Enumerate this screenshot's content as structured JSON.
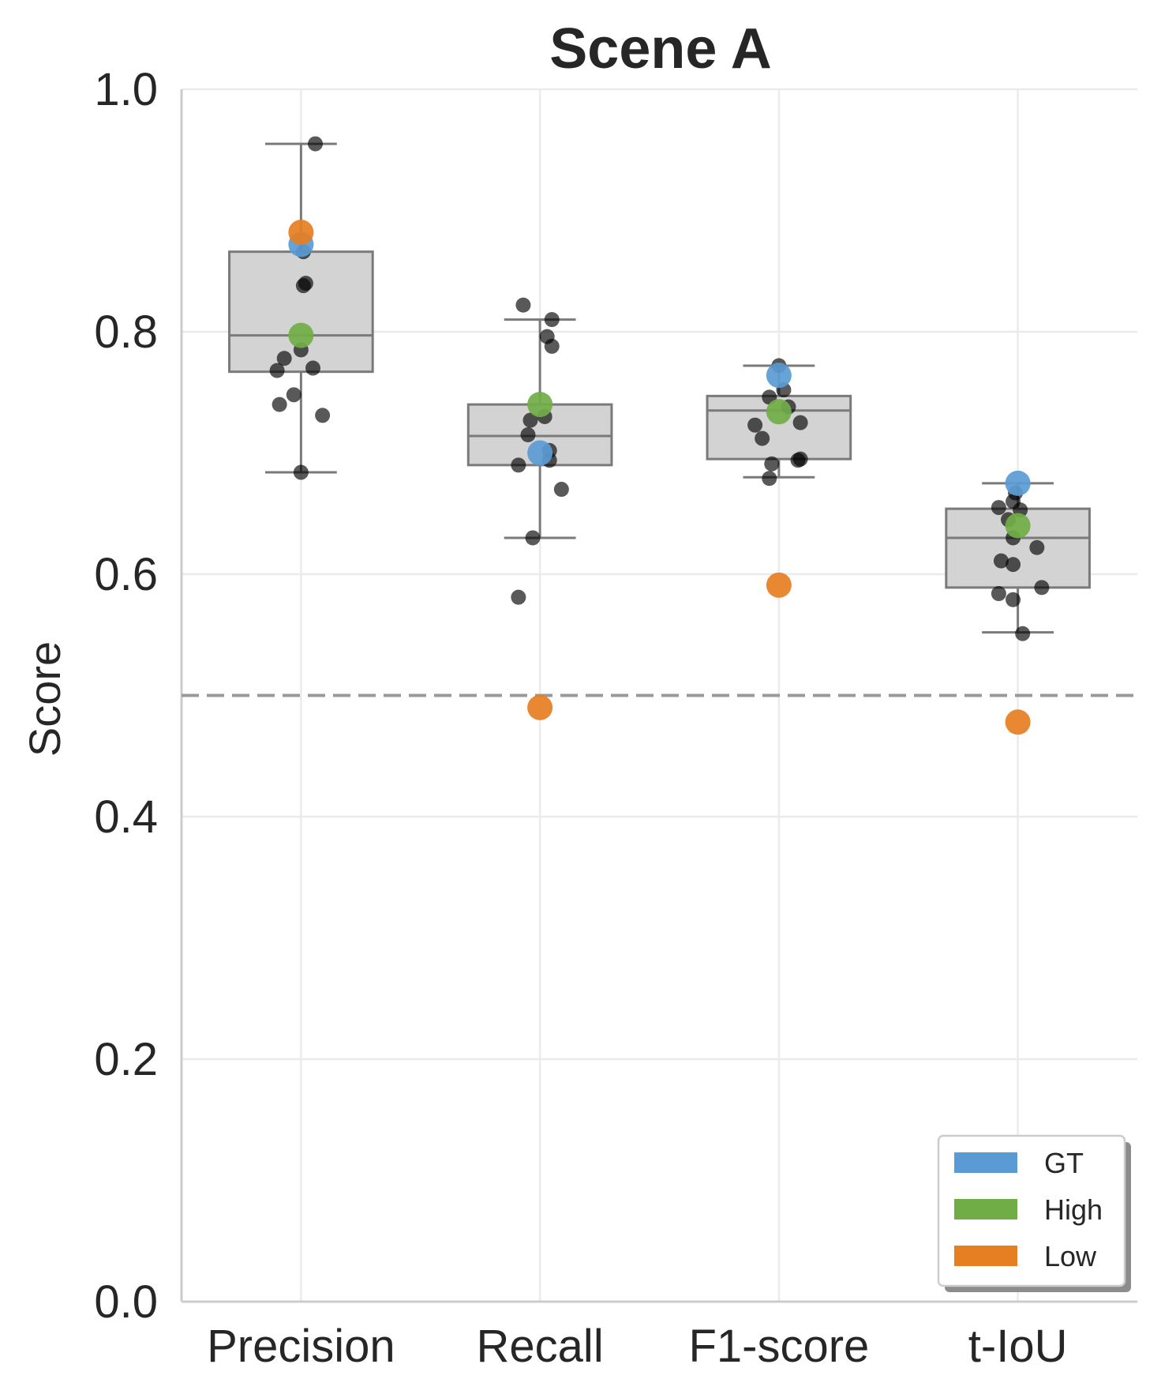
{
  "chart_data": {
    "type": "box",
    "title": "Scene A",
    "xlabel": "",
    "ylabel": "Score",
    "ylim": [
      0.0,
      1.0
    ],
    "yticks": [
      "0.0",
      "0.2",
      "0.4",
      "0.6",
      "0.8",
      "1.0"
    ],
    "grid": true,
    "categories": [
      "Precision",
      "Recall",
      "F1-score",
      "t-IoU"
    ],
    "reference_line": {
      "y": 0.5,
      "style": "dashed",
      "color": "#999999"
    },
    "boxes": [
      {
        "q1": 0.767,
        "median": 0.797,
        "q3": 0.866,
        "whisker_low": 0.684,
        "whisker_high": 0.955
      },
      {
        "q1": 0.69,
        "median": 0.714,
        "q3": 0.74,
        "whisker_low": 0.63,
        "whisker_high": 0.81
      },
      {
        "q1": 0.695,
        "median": 0.735,
        "q3": 0.747,
        "whisker_low": 0.68,
        "whisker_high": 0.772
      },
      {
        "q1": 0.589,
        "median": 0.63,
        "q3": 0.654,
        "whisker_low": 0.552,
        "whisker_high": 0.675
      }
    ],
    "points": [
      [
        {
          "dx": 0.06,
          "y": 0.955
        },
        {
          "dx": 0.01,
          "y": 0.866
        },
        {
          "dx": 0.02,
          "y": 0.84
        },
        {
          "dx": 0.01,
          "y": 0.838
        },
        {
          "dx": 0.0,
          "y": 0.785
        },
        {
          "dx": -0.07,
          "y": 0.778
        },
        {
          "dx": 0.05,
          "y": 0.77
        },
        {
          "dx": -0.1,
          "y": 0.768
        },
        {
          "dx": -0.03,
          "y": 0.748
        },
        {
          "dx": -0.09,
          "y": 0.74
        },
        {
          "dx": 0.09,
          "y": 0.731
        },
        {
          "dx": 0.0,
          "y": 0.684
        }
      ],
      [
        {
          "dx": -0.07,
          "y": 0.822
        },
        {
          "dx": 0.05,
          "y": 0.81
        },
        {
          "dx": 0.03,
          "y": 0.796
        },
        {
          "dx": 0.05,
          "y": 0.788
        },
        {
          "dx": 0.02,
          "y": 0.73
        },
        {
          "dx": -0.04,
          "y": 0.727
        },
        {
          "dx": -0.05,
          "y": 0.715
        },
        {
          "dx": 0.04,
          "y": 0.702
        },
        {
          "dx": 0.04,
          "y": 0.694
        },
        {
          "dx": -0.09,
          "y": 0.69
        },
        {
          "dx": 0.09,
          "y": 0.67
        },
        {
          "dx": -0.03,
          "y": 0.63
        },
        {
          "dx": -0.09,
          "y": 0.581
        }
      ],
      [
        {
          "dx": 0.0,
          "y": 0.772
        },
        {
          "dx": 0.02,
          "y": 0.752
        },
        {
          "dx": -0.04,
          "y": 0.746
        },
        {
          "dx": 0.04,
          "y": 0.738
        },
        {
          "dx": 0.09,
          "y": 0.725
        },
        {
          "dx": -0.1,
          "y": 0.723
        },
        {
          "dx": -0.07,
          "y": 0.712
        },
        {
          "dx": 0.09,
          "y": 0.695
        },
        {
          "dx": 0.08,
          "y": 0.694
        },
        {
          "dx": -0.03,
          "y": 0.691
        },
        {
          "dx": -0.04,
          "y": 0.679
        }
      ],
      [
        {
          "dx": -0.01,
          "y": 0.667
        },
        {
          "dx": -0.02,
          "y": 0.66
        },
        {
          "dx": -0.08,
          "y": 0.655
        },
        {
          "dx": 0.01,
          "y": 0.653
        },
        {
          "dx": -0.04,
          "y": 0.645
        },
        {
          "dx": -0.02,
          "y": 0.63
        },
        {
          "dx": 0.08,
          "y": 0.622
        },
        {
          "dx": -0.07,
          "y": 0.611
        },
        {
          "dx": -0.02,
          "y": 0.608
        },
        {
          "dx": 0.1,
          "y": 0.589
        },
        {
          "dx": -0.08,
          "y": 0.584
        },
        {
          "dx": -0.02,
          "y": 0.579
        },
        {
          "dx": 0.02,
          "y": 0.551
        }
      ]
    ],
    "series": [
      {
        "name": "GT",
        "color": "#5b9bd5",
        "values": [
          0.872,
          0.7,
          0.764,
          0.675
        ]
      },
      {
        "name": "High",
        "color": "#70ad47",
        "values": [
          0.797,
          0.74,
          0.734,
          0.64
        ]
      },
      {
        "name": "Low",
        "color": "#e67e22",
        "values": [
          0.882,
          0.49,
          0.591,
          0.478
        ]
      }
    ],
    "legend_position": "bottom-right"
  }
}
